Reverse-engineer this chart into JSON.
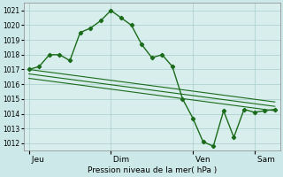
{
  "background_color": "#cce8e8",
  "grid_color": "#aacccc",
  "plot_bg": "#d8eeed",
  "line_color": "#1a6b1a",
  "xlabel_text": "Pression niveau de la mer( hPa )",
  "ylim": [
    1011.5,
    1021.5
  ],
  "yticks": [
    1012,
    1013,
    1014,
    1015,
    1016,
    1017,
    1018,
    1019,
    1020,
    1021
  ],
  "day_labels": [
    " Jeu",
    " Dim",
    " Ven",
    " Sam"
  ],
  "day_positions": [
    0,
    8,
    16,
    22
  ],
  "xlim": [
    -0.5,
    24.5
  ],
  "series1_x": [
    0,
    1,
    2,
    3,
    4,
    5,
    6,
    7,
    8,
    9,
    10,
    11,
    12,
    13,
    14,
    15,
    16,
    17,
    18,
    19,
    20,
    21,
    22,
    23,
    24
  ],
  "series1_y": [
    1017.0,
    1017.2,
    1018.0,
    1018.0,
    1017.6,
    1019.5,
    1019.8,
    1020.3,
    1021.0,
    1020.5,
    1020.0,
    1018.7,
    1017.8,
    1018.0,
    1017.2,
    1015.0,
    1013.7,
    1012.1,
    1011.8,
    1014.2,
    1012.4,
    1014.3,
    1014.1,
    1014.2,
    1014.3
  ],
  "trend1_x": [
    0,
    24
  ],
  "trend1_y": [
    1017.0,
    1014.8
  ],
  "trend2_x": [
    0,
    24
  ],
  "trend2_y": [
    1016.7,
    1014.5
  ],
  "trend3_x": [
    0,
    24
  ],
  "trend3_y": [
    1016.4,
    1014.2
  ],
  "vline_positions": [
    0,
    8,
    16,
    22
  ]
}
